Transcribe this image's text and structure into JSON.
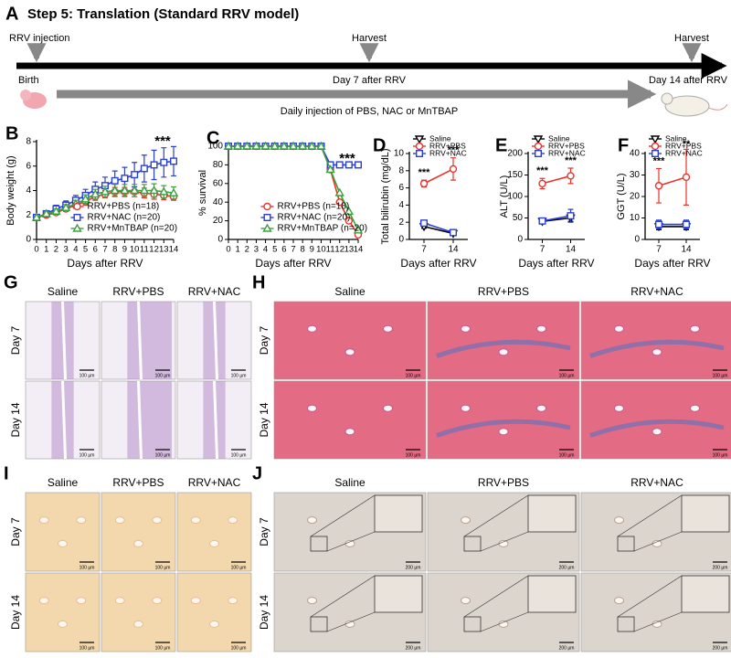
{
  "panel_a": {
    "label": "A",
    "title": "Step 5: Translation (Standard RRV model)",
    "rrv_injection": "RRV injection",
    "harvest_day7": "Harvest",
    "harvest_day14": "Harvest",
    "birth": "Birth",
    "day7": "Day 7 after RRV",
    "day14": "Day 14 after RRV",
    "treatment": "Daily injection of PBS, NAC or MnTBAP"
  },
  "chart_data": [
    {
      "type": "line",
      "panel_label": "B",
      "ylabel": "Body weight (g)",
      "xlabel": "Days after RRV",
      "x": [
        0,
        1,
        2,
        3,
        4,
        5,
        6,
        7,
        8,
        9,
        10,
        11,
        12,
        13,
        14
      ],
      "xlim": [
        0,
        14
      ],
      "xticks": [
        0,
        1,
        2,
        3,
        4,
        5,
        6,
        7,
        8,
        9,
        10,
        11,
        12,
        13,
        14
      ],
      "ylim": [
        0,
        8
      ],
      "yticks": [
        0,
        2,
        4,
        6,
        8
      ],
      "legend": "lower right",
      "annotations": [
        "***"
      ],
      "series": [
        {
          "name": "RRV+PBS (n=18)",
          "color": "#e8342c",
          "marker": "circle",
          "values": [
            1.8,
            2.0,
            2.2,
            2.5,
            2.8,
            3.1,
            3.5,
            3.7,
            3.9,
            3.9,
            3.9,
            3.8,
            3.7,
            3.6,
            3.5
          ],
          "errors": [
            0.1,
            0.15,
            0.2,
            0.2,
            0.25,
            0.3,
            0.3,
            0.3,
            0.35,
            0.35,
            0.4,
            0.4,
            0.4,
            0.35,
            0.3
          ]
        },
        {
          "name": "RRV+NAC (n=20)",
          "color": "#2a3fd6",
          "marker": "square",
          "values": [
            1.8,
            2.1,
            2.5,
            2.8,
            3.2,
            3.6,
            4.1,
            4.4,
            4.8,
            5.0,
            5.3,
            5.8,
            6.1,
            6.3,
            6.4
          ],
          "errors": [
            0.1,
            0.2,
            0.3,
            0.35,
            0.4,
            0.5,
            0.6,
            0.7,
            0.8,
            0.9,
            1.0,
            1.1,
            1.2,
            1.2,
            1.2
          ]
        },
        {
          "name": "RRV+MnTBAP (n=20)",
          "color": "#3aa040",
          "marker": "triangle",
          "values": [
            1.8,
            2.1,
            2.3,
            2.6,
            2.9,
            3.3,
            3.7,
            3.9,
            4.0,
            4.0,
            4.0,
            4.0,
            4.0,
            3.9,
            3.8
          ],
          "errors": [
            0.1,
            0.15,
            0.2,
            0.25,
            0.3,
            0.35,
            0.4,
            0.45,
            0.5,
            0.5,
            0.5,
            0.5,
            0.55,
            0.5,
            0.5
          ]
        }
      ]
    },
    {
      "type": "line",
      "panel_label": "C",
      "ylabel": "% survival",
      "xlabel": "Days after RRV",
      "x": [
        0,
        1,
        2,
        3,
        4,
        5,
        6,
        7,
        8,
        9,
        10,
        11,
        12,
        13,
        14
      ],
      "xlim": [
        0,
        14
      ],
      "xticks": [
        0,
        1,
        2,
        3,
        4,
        5,
        6,
        7,
        8,
        9,
        10,
        11,
        12,
        13,
        14
      ],
      "ylim": [
        0,
        100
      ],
      "yticks": [
        0,
        20,
        40,
        60,
        80,
        100
      ],
      "legend": "lower right",
      "annotations": [
        "***"
      ],
      "series": [
        {
          "name": "RRV+PBS (n=18)",
          "color": "#e8342c",
          "marker": "circle",
          "values": [
            100,
            100,
            100,
            100,
            100,
            100,
            100,
            100,
            100,
            100,
            100,
            75,
            40,
            20,
            5
          ]
        },
        {
          "name": "RRV+NAC (n=20)",
          "color": "#2a3fd6",
          "marker": "square",
          "values": [
            100,
            100,
            100,
            100,
            100,
            100,
            100,
            100,
            100,
            100,
            100,
            80,
            80,
            80,
            80
          ]
        },
        {
          "name": "RRV+MnTBAP (n=20)",
          "color": "#3aa040",
          "marker": "triangle",
          "values": [
            100,
            100,
            100,
            100,
            100,
            100,
            100,
            100,
            100,
            100,
            100,
            75,
            50,
            30,
            10
          ]
        }
      ]
    },
    {
      "type": "line",
      "panel_label": "D",
      "ylabel": "Total bilirubin (mg/dL)",
      "xlabel": "Days after RRV",
      "categories": [
        "7",
        "14"
      ],
      "ylim": [
        0,
        10
      ],
      "yticks": [
        0,
        2,
        4,
        6,
        8,
        10
      ],
      "legend": "upper left",
      "annotations": [
        "***",
        "***"
      ],
      "series": [
        {
          "name": "Saline",
          "color": "#000000",
          "marker": "triangle-down",
          "values": [
            1.5,
            0.7
          ],
          "errors": [
            0.2,
            0.15
          ]
        },
        {
          "name": "RRV+PBS",
          "color": "#e8342c",
          "marker": "circle",
          "values": [
            6.5,
            8.2
          ],
          "errors": [
            0.4,
            1.3
          ]
        },
        {
          "name": "RRV+NAC",
          "color": "#2a3fd6",
          "marker": "square",
          "values": [
            1.9,
            0.8
          ],
          "errors": [
            0.3,
            0.2
          ]
        }
      ]
    },
    {
      "type": "line",
      "panel_label": "E",
      "ylabel": "ALT (U/L)",
      "xlabel": "Days after RRV",
      "categories": [
        "7",
        "14"
      ],
      "ylim": [
        0,
        200
      ],
      "yticks": [
        0,
        50,
        100,
        150,
        200
      ],
      "legend": "upper left",
      "annotations": [
        "***",
        "***"
      ],
      "series": [
        {
          "name": "Saline",
          "color": "#000000",
          "marker": "triangle-down",
          "values": [
            42,
            50
          ],
          "errors": [
            5,
            8
          ]
        },
        {
          "name": "RRV+PBS",
          "color": "#e8342c",
          "marker": "circle",
          "values": [
            130,
            148
          ],
          "errors": [
            12,
            18
          ]
        },
        {
          "name": "RRV+NAC",
          "color": "#2a3fd6",
          "marker": "square",
          "values": [
            43,
            55
          ],
          "errors": [
            5,
            15
          ]
        }
      ]
    },
    {
      "type": "line",
      "panel_label": "F",
      "ylabel": "GGT (U/L)",
      "xlabel": "Days after RRV",
      "categories": [
        "7",
        "14"
      ],
      "ylim": [
        0,
        40
      ],
      "yticks": [
        0,
        10,
        20,
        30,
        40
      ],
      "legend": "upper left",
      "annotations": [
        "***",
        "**"
      ],
      "series": [
        {
          "name": "Saline",
          "color": "#000000",
          "marker": "triangle-down",
          "values": [
            6,
            6
          ],
          "errors": [
            1.5,
            1.5
          ]
        },
        {
          "name": "RRV+PBS",
          "color": "#e8342c",
          "marker": "circle",
          "values": [
            25,
            29
          ],
          "errors": [
            8,
            13
          ]
        },
        {
          "name": "RRV+NAC",
          "color": "#2a3fd6",
          "marker": "square",
          "values": [
            7,
            7
          ],
          "errors": [
            2,
            2
          ]
        }
      ]
    }
  ],
  "histology": [
    {
      "label": "G",
      "columns": [
        "Saline",
        "RRV+PBS",
        "RRV+NAC"
      ],
      "rows": [
        "Day 7",
        "Day 14"
      ],
      "scale_bar": "100 µm"
    },
    {
      "label": "H",
      "columns": [
        "Saline",
        "RRV+PBS",
        "RRV+NAC"
      ],
      "rows": [
        "Day 7",
        "Day 14"
      ],
      "scale_bar": "100 µm"
    },
    {
      "label": "I",
      "columns": [
        "Saline",
        "RRV+PBS",
        "RRV+NAC"
      ],
      "rows": [
        "Day 7",
        "Day 14"
      ],
      "scale_bar": "100 µm"
    },
    {
      "label": "J",
      "columns": [
        "Saline",
        "RRV+PBS",
        "RRV+NAC"
      ],
      "rows": [
        "Day 7",
        "Day 14"
      ],
      "scale_bar": "200 µm"
    }
  ]
}
